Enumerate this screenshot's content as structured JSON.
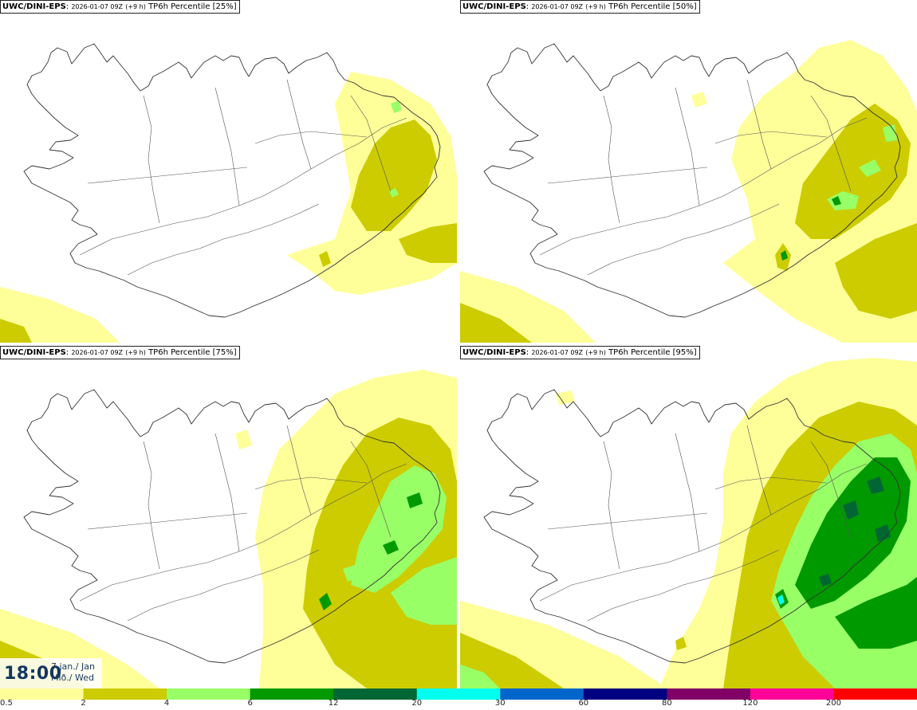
{
  "panels": [
    {
      "model": "UWC/DINI-EPS",
      "sep": ":",
      "run": "2026-01-07 09Z",
      "lead": "(+9 h)",
      "product": "TP6h Percentile [25%]",
      "level": 1
    },
    {
      "model": "UWC/DINI-EPS",
      "sep": ":",
      "run": "2026-01-07 09Z",
      "lead": "(+9 h)",
      "product": "TP6h Percentile [50%]",
      "level": 2
    },
    {
      "model": "UWC/DINI-EPS",
      "sep": ":",
      "run": "2026-01-07 09Z",
      "lead": "(+9 h)",
      "product": "TP6h Percentile [75%]",
      "level": 3
    },
    {
      "model": "UWC/DINI-EPS",
      "sep": ":",
      "run": "2026-01-07 09Z",
      "lead": "(+9 h)",
      "product": "TP6h Percentile [95%]",
      "level": 4
    }
  ],
  "valid_time": {
    "time": "18:00",
    "date_line1": "7.jan./ Jan",
    "date_line2": "Mið./ Wed"
  },
  "legend": {
    "thresholds": [
      "0.5",
      "2",
      "4",
      "6",
      "12",
      "20",
      "30",
      "60",
      "80",
      "120",
      "200"
    ],
    "colors": [
      "#ffff99",
      "#cccc00",
      "#99ff66",
      "#009900",
      "#006633",
      "#00ffee",
      "#0066cc",
      "#000080",
      "#800066",
      "#ff0099",
      "#ff0000"
    ]
  },
  "map_colors": {
    "coast": "#333333",
    "bg": "#ffffff"
  }
}
